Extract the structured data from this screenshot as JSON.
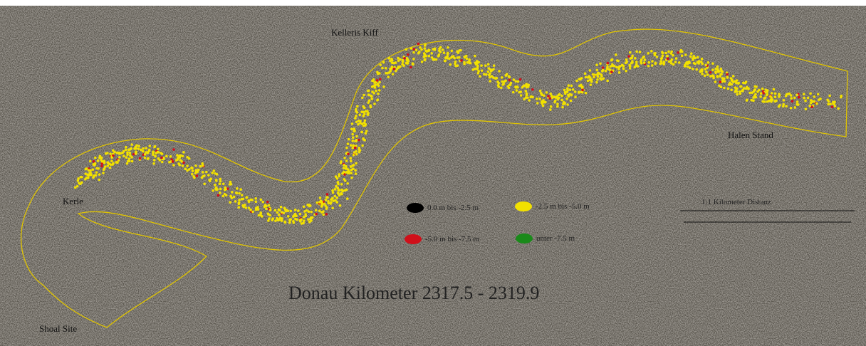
{
  "title": "Donau Kilometer 2317.5 - 2319.9",
  "places": [
    "Kelleris Kiff",
    "Halen Stand",
    "Kerle",
    "Shoal Site"
  ],
  "legend": [
    {
      "label": "0.0 m bis -2.5 m",
      "color": "#000000"
    },
    {
      "label": "-2.5 m bis -5.0 m",
      "color": "#f2e100"
    },
    {
      "label": "-5.0 m bis -7.5 m",
      "color": "#d0101a"
    },
    {
      "label": "unter -7.5 m",
      "color": "#1a8a1a"
    }
  ],
  "scale": {
    "label": "1:1 Kilometer Distanz"
  }
}
